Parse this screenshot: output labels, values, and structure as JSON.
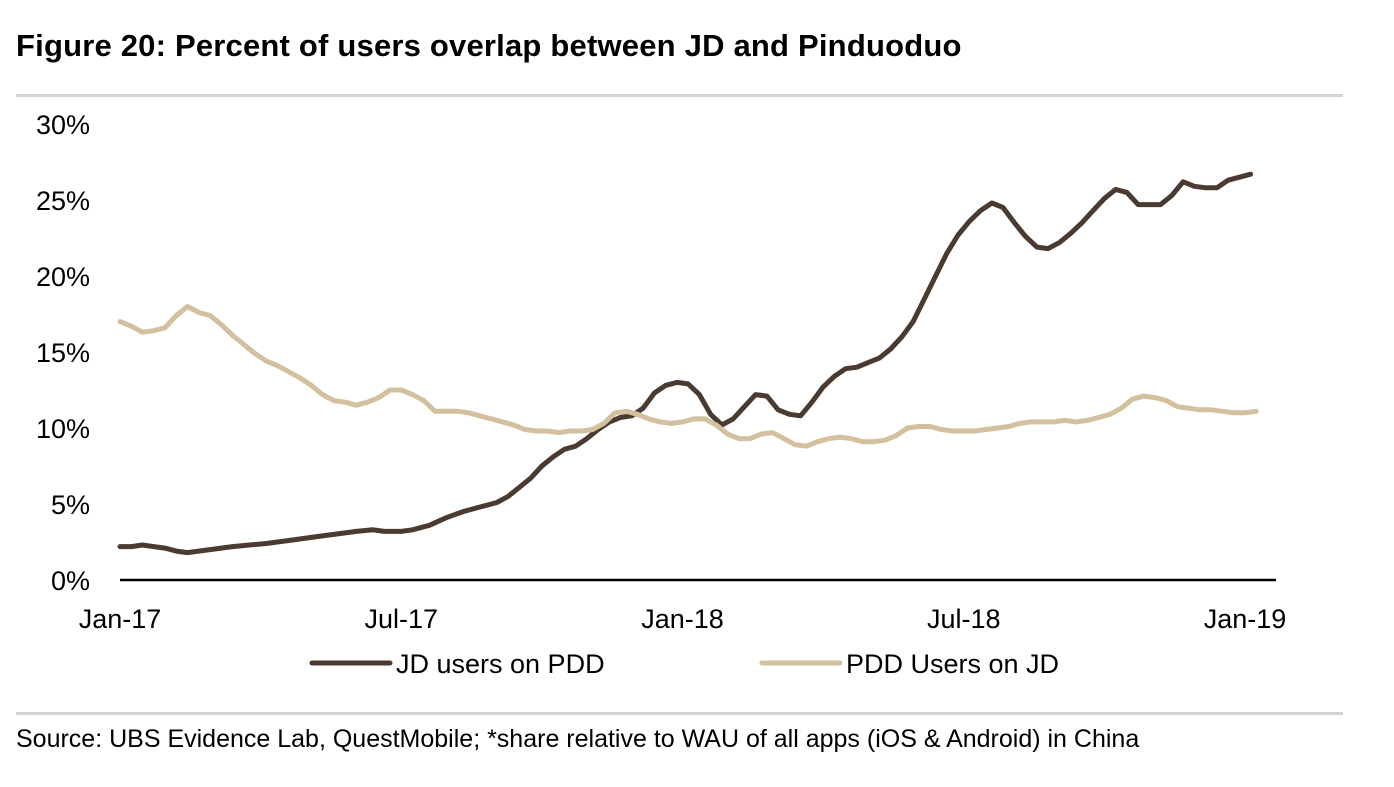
{
  "title": "Figure 20: Percent of users overlap between JD and Pinduoduo",
  "source": "Source:  UBS Evidence Lab, QuestMobile; *share relative to WAU of all apps (iOS & Android) in China",
  "chart_data": {
    "type": "line",
    "title": "Figure 20: Percent of users overlap between JD and Pinduoduo",
    "xlabel": "",
    "ylabel": "",
    "ylim": [
      0,
      30
    ],
    "xlim": [
      0,
      2.08
    ],
    "y_ticks": [
      0,
      5,
      10,
      15,
      20,
      25,
      30
    ],
    "y_tick_labels": [
      "0%",
      "5%",
      "10%",
      "15%",
      "20%",
      "25%",
      "30%"
    ],
    "x_ticks": [
      0,
      0.5,
      1,
      1.5,
      2
    ],
    "x_tick_labels": [
      "Jan-17",
      "Jul-17",
      "Jan-18",
      "Jul-18",
      "Jan-19"
    ],
    "x_unit_note": "years after Jan-17",
    "grid": false,
    "legend_position": "bottom",
    "series": [
      {
        "name": "JD users on PDD",
        "color": "#4a3a30",
        "points": [
          [
            0.0,
            2.2
          ],
          [
            0.02,
            2.2
          ],
          [
            0.04,
            2.3
          ],
          [
            0.06,
            2.2
          ],
          [
            0.08,
            2.1
          ],
          [
            0.1,
            1.9
          ],
          [
            0.12,
            1.8
          ],
          [
            0.14,
            1.9
          ],
          [
            0.16,
            2.0
          ],
          [
            0.18,
            2.1
          ],
          [
            0.2,
            2.2
          ],
          [
            0.23,
            2.3
          ],
          [
            0.26,
            2.4
          ],
          [
            0.3,
            2.6
          ],
          [
            0.34,
            2.8
          ],
          [
            0.38,
            3.0
          ],
          [
            0.42,
            3.2
          ],
          [
            0.45,
            3.3
          ],
          [
            0.47,
            3.2
          ],
          [
            0.5,
            3.2
          ],
          [
            0.52,
            3.3
          ],
          [
            0.55,
            3.6
          ],
          [
            0.58,
            4.1
          ],
          [
            0.61,
            4.5
          ],
          [
            0.64,
            4.8
          ],
          [
            0.67,
            5.1
          ],
          [
            0.69,
            5.5
          ],
          [
            0.71,
            6.1
          ],
          [
            0.73,
            6.7
          ],
          [
            0.75,
            7.5
          ],
          [
            0.77,
            8.1
          ],
          [
            0.79,
            8.6
          ],
          [
            0.81,
            8.8
          ],
          [
            0.83,
            9.3
          ],
          [
            0.85,
            9.9
          ],
          [
            0.87,
            10.4
          ],
          [
            0.89,
            10.7
          ],
          [
            0.91,
            10.8
          ],
          [
            0.93,
            11.3
          ],
          [
            0.95,
            12.3
          ],
          [
            0.97,
            12.8
          ],
          [
            0.99,
            13.0
          ],
          [
            1.01,
            12.9
          ],
          [
            1.03,
            12.2
          ],
          [
            1.05,
            10.9
          ],
          [
            1.07,
            10.2
          ],
          [
            1.09,
            10.6
          ],
          [
            1.11,
            11.4
          ],
          [
            1.13,
            12.2
          ],
          [
            1.15,
            12.1
          ],
          [
            1.17,
            11.2
          ],
          [
            1.19,
            10.9
          ],
          [
            1.21,
            10.8
          ],
          [
            1.23,
            11.7
          ],
          [
            1.25,
            12.7
          ],
          [
            1.27,
            13.4
          ],
          [
            1.29,
            13.9
          ],
          [
            1.31,
            14.0
          ],
          [
            1.33,
            14.3
          ],
          [
            1.35,
            14.6
          ],
          [
            1.37,
            15.2
          ],
          [
            1.39,
            16.0
          ],
          [
            1.41,
            17.0
          ],
          [
            1.43,
            18.5
          ],
          [
            1.45,
            20.0
          ],
          [
            1.47,
            21.5
          ],
          [
            1.49,
            22.7
          ],
          [
            1.51,
            23.6
          ],
          [
            1.53,
            24.3
          ],
          [
            1.55,
            24.8
          ],
          [
            1.57,
            24.5
          ],
          [
            1.59,
            23.5
          ],
          [
            1.61,
            22.6
          ],
          [
            1.63,
            21.9
          ],
          [
            1.65,
            21.8
          ],
          [
            1.67,
            22.2
          ],
          [
            1.69,
            22.8
          ],
          [
            1.71,
            23.5
          ],
          [
            1.73,
            24.3
          ],
          [
            1.75,
            25.1
          ],
          [
            1.77,
            25.7
          ],
          [
            1.79,
            25.5
          ],
          [
            1.81,
            24.7
          ],
          [
            1.83,
            24.7
          ],
          [
            1.85,
            24.7
          ],
          [
            1.87,
            25.3
          ],
          [
            1.89,
            26.2
          ],
          [
            1.91,
            25.9
          ],
          [
            1.93,
            25.8
          ],
          [
            1.95,
            25.8
          ],
          [
            1.97,
            26.3
          ],
          [
            1.99,
            26.5
          ],
          [
            2.01,
            26.7
          ]
        ]
      },
      {
        "name": "PDD Users on JD",
        "color": "#d2c09e",
        "points": [
          [
            0.0,
            17.0
          ],
          [
            0.02,
            16.7
          ],
          [
            0.04,
            16.3
          ],
          [
            0.06,
            16.4
          ],
          [
            0.08,
            16.6
          ],
          [
            0.1,
            17.4
          ],
          [
            0.12,
            18.0
          ],
          [
            0.14,
            17.6
          ],
          [
            0.16,
            17.4
          ],
          [
            0.18,
            16.8
          ],
          [
            0.2,
            16.1
          ],
          [
            0.22,
            15.5
          ],
          [
            0.24,
            14.9
          ],
          [
            0.26,
            14.4
          ],
          [
            0.28,
            14.1
          ],
          [
            0.3,
            13.7
          ],
          [
            0.32,
            13.3
          ],
          [
            0.34,
            12.8
          ],
          [
            0.36,
            12.2
          ],
          [
            0.38,
            11.8
          ],
          [
            0.4,
            11.7
          ],
          [
            0.42,
            11.5
          ],
          [
            0.44,
            11.7
          ],
          [
            0.46,
            12.0
          ],
          [
            0.48,
            12.5
          ],
          [
            0.5,
            12.5
          ],
          [
            0.52,
            12.2
          ],
          [
            0.54,
            11.8
          ],
          [
            0.56,
            11.1
          ],
          [
            0.58,
            11.1
          ],
          [
            0.6,
            11.1
          ],
          [
            0.62,
            11.0
          ],
          [
            0.64,
            10.8
          ],
          [
            0.66,
            10.6
          ],
          [
            0.68,
            10.4
          ],
          [
            0.7,
            10.2
          ],
          [
            0.72,
            9.9
          ],
          [
            0.74,
            9.8
          ],
          [
            0.76,
            9.8
          ],
          [
            0.78,
            9.7
          ],
          [
            0.8,
            9.8
          ],
          [
            0.82,
            9.8
          ],
          [
            0.84,
            9.9
          ],
          [
            0.86,
            10.3
          ],
          [
            0.88,
            11.0
          ],
          [
            0.9,
            11.1
          ],
          [
            0.92,
            10.9
          ],
          [
            0.94,
            10.6
          ],
          [
            0.96,
            10.4
          ],
          [
            0.98,
            10.3
          ],
          [
            1.0,
            10.4
          ],
          [
            1.02,
            10.6
          ],
          [
            1.04,
            10.6
          ],
          [
            1.06,
            10.2
          ],
          [
            1.08,
            9.6
          ],
          [
            1.1,
            9.3
          ],
          [
            1.12,
            9.3
          ],
          [
            1.14,
            9.6
          ],
          [
            1.16,
            9.7
          ],
          [
            1.18,
            9.3
          ],
          [
            1.2,
            8.9
          ],
          [
            1.22,
            8.8
          ],
          [
            1.24,
            9.1
          ],
          [
            1.26,
            9.3
          ],
          [
            1.28,
            9.4
          ],
          [
            1.3,
            9.3
          ],
          [
            1.32,
            9.1
          ],
          [
            1.34,
            9.1
          ],
          [
            1.36,
            9.2
          ],
          [
            1.38,
            9.5
          ],
          [
            1.4,
            10.0
          ],
          [
            1.42,
            10.1
          ],
          [
            1.44,
            10.1
          ],
          [
            1.46,
            9.9
          ],
          [
            1.48,
            9.8
          ],
          [
            1.5,
            9.8
          ],
          [
            1.52,
            9.8
          ],
          [
            1.54,
            9.9
          ],
          [
            1.56,
            10.0
          ],
          [
            1.58,
            10.1
          ],
          [
            1.6,
            10.3
          ],
          [
            1.62,
            10.4
          ],
          [
            1.64,
            10.4
          ],
          [
            1.66,
            10.4
          ],
          [
            1.68,
            10.5
          ],
          [
            1.7,
            10.4
          ],
          [
            1.72,
            10.5
          ],
          [
            1.74,
            10.7
          ],
          [
            1.76,
            10.9
          ],
          [
            1.78,
            11.3
          ],
          [
            1.8,
            11.9
          ],
          [
            1.82,
            12.1
          ],
          [
            1.84,
            12.0
          ],
          [
            1.86,
            11.8
          ],
          [
            1.88,
            11.4
          ],
          [
            1.9,
            11.3
          ],
          [
            1.92,
            11.2
          ],
          [
            1.94,
            11.2
          ],
          [
            1.96,
            11.1
          ],
          [
            1.98,
            11.0
          ],
          [
            2.0,
            11.0
          ],
          [
            2.02,
            11.1
          ]
        ]
      }
    ]
  }
}
